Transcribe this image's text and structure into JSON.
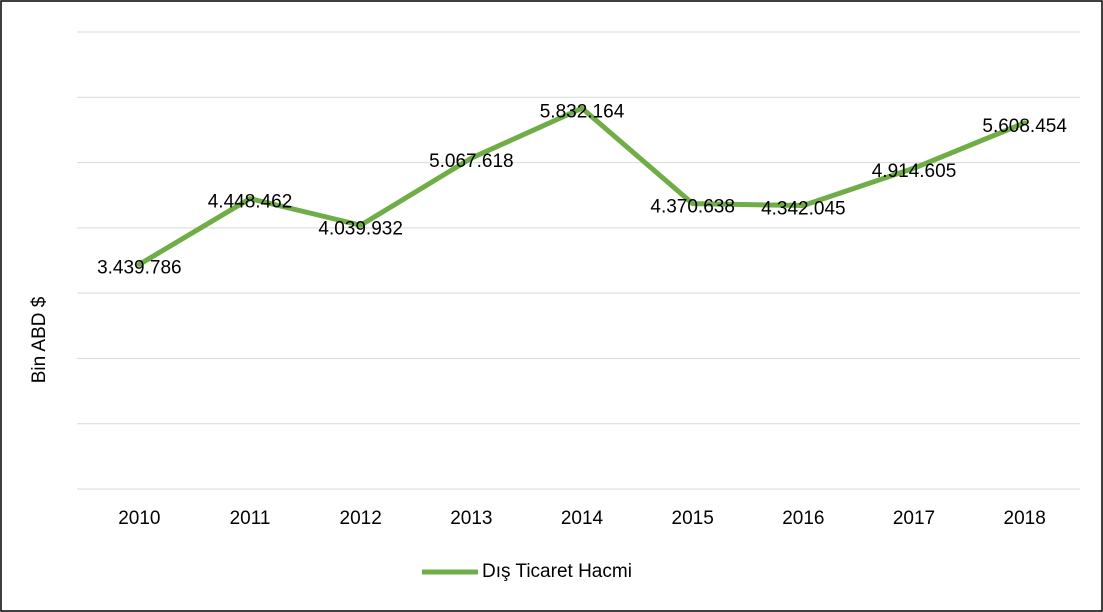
{
  "chart_data": {
    "type": "line",
    "y_label": "Bin ABD $",
    "categories": [
      "2010",
      "2011",
      "2012",
      "2013",
      "2014",
      "2015",
      "2016",
      "2017",
      "2018"
    ],
    "series": [
      {
        "name": "Dış Ticaret Hacmi",
        "color": "#70ad47",
        "values": [
          3439786,
          4448462,
          4039932,
          5067618,
          5832164,
          4370638,
          4342045,
          4914605,
          5608454
        ],
        "value_labels": [
          "3.439.786",
          "4.448.462",
          "4.039.932",
          "5.067.618",
          "5.832.164",
          "4.370.638",
          "4.342.045",
          "4.914.605",
          "5.608.454"
        ]
      }
    ],
    "ylim": [
      0,
      7000000
    ],
    "yticks": [
      0,
      1000000,
      2000000,
      3000000,
      4000000,
      5000000,
      6000000,
      7000000
    ],
    "grid": true,
    "legend": "bottom"
  }
}
